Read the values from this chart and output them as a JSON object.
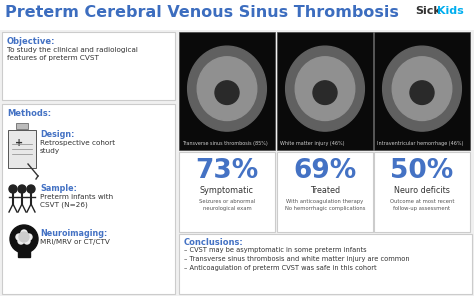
{
  "title": "Preterm Cerebral Venous Sinus Thrombosis",
  "title_color": "#3C6DBF",
  "title_fontsize": 11.5,
  "brand_sick": "Sick",
  "brand_kids": "Kids",
  "brand_sick_color": "#333333",
  "brand_kids_color": "#00AEEF",
  "background_color": "#F0F0F0",
  "panel_bg": "#FFFFFF",
  "panel_border": "#CCCCCC",
  "label_color": "#4472C4",
  "text_color": "#333333",
  "small_text_color": "#555555",
  "objective_label": "Objective:",
  "objective_text": "To study the clinical and radiological\nfeatures of preterm CVST",
  "methods_label": "Methods:",
  "design_label": "Design:",
  "design_text": "Retrospective cohort\nstudy",
  "sample_label": "Sample:",
  "sample_text": "Preterm infants with\nCSVT (N=26)",
  "neuro_label": "Neuroimaging:",
  "neuro_text": "MRI/MRV or CT/CTV",
  "img_captions": [
    "Transverse sinus thrombosis (85%)",
    "White matter injury (46%)",
    "Intraventricular hemorrhage (46%)"
  ],
  "img_bg": "#0A0A0A",
  "stats": [
    "73%",
    "69%",
    "50%"
  ],
  "stat_labels": [
    "Symptomatic",
    "Treated",
    "Neuro deficits"
  ],
  "stat_descs": [
    "Seizures or abnormal\nneurological exam",
    "With anticoagulation therapy\nNo hemorrhagic complications",
    "Outcome at most recent\nfollow-up assessment"
  ],
  "stat_color": "#4472C4",
  "stat_label_color": "#333333",
  "conclusions_label": "Conclusions:",
  "conclusions": [
    "CVST may be asymptomatic in some preterm infants",
    "Transverse sinus thrombosis and white matter injury are common",
    "Anticoagulation of preterm CVST was safe in this cohort"
  ]
}
